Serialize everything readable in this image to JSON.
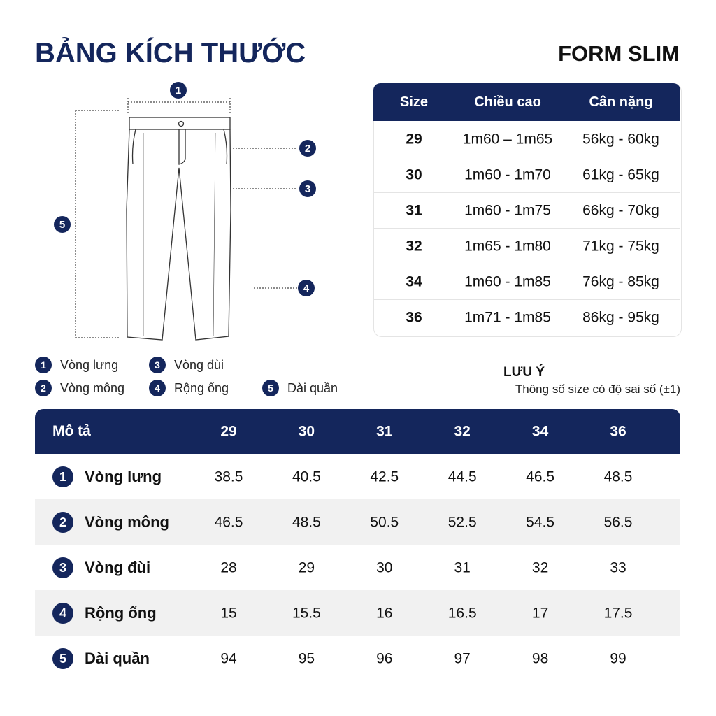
{
  "header": {
    "title": "BẢNG KÍCH THƯỚC",
    "form": "FORM SLIM"
  },
  "diagram": {
    "markers": [
      "1",
      "2",
      "3",
      "4",
      "5"
    ]
  },
  "size_table": {
    "columns": [
      "Size",
      "Chiều cao",
      "Cân nặng"
    ],
    "rows": [
      [
        "29",
        "1m60 – 1m65",
        "56kg - 60kg"
      ],
      [
        "30",
        "1m60 - 1m70",
        "61kg - 65kg"
      ],
      [
        "31",
        "1m60 - 1m75",
        "66kg - 70kg"
      ],
      [
        "32",
        "1m65 - 1m80",
        "71kg - 75kg"
      ],
      [
        "34",
        "1m60 - 1m85",
        "76kg - 85kg"
      ],
      [
        "36",
        "1m71 - 1m85",
        "86kg - 95kg"
      ]
    ]
  },
  "legend": [
    {
      "number": "1",
      "label": "Vòng lưng"
    },
    {
      "number": "3",
      "label": "Vòng đùi"
    },
    {
      "number": "2",
      "label": "Vòng mông"
    },
    {
      "number": "4",
      "label": "Rộng ống"
    },
    {
      "number": "5",
      "label": "Dài quần"
    }
  ],
  "note": {
    "title": "LƯU Ý",
    "text": "Thông số size có độ sai số (±1)"
  },
  "measure_table": {
    "columns": [
      "Mô tả",
      "29",
      "30",
      "31",
      "32",
      "34",
      "36"
    ],
    "rows": [
      {
        "number": "1",
        "label": "Vòng lưng",
        "values": [
          38.5,
          40.5,
          42.5,
          44.5,
          46.5,
          48.5
        ]
      },
      {
        "number": "2",
        "label": "Vòng mông",
        "values": [
          46.5,
          48.5,
          50.5,
          52.5,
          54.5,
          56.5
        ]
      },
      {
        "number": "3",
        "label": "Vòng đùi",
        "values": [
          28,
          29,
          30,
          31,
          32,
          33
        ]
      },
      {
        "number": "4",
        "label": "Rộng ống",
        "values": [
          15,
          15.5,
          16,
          16.5,
          17,
          17.5
        ]
      },
      {
        "number": "5",
        "label": "Dài quần",
        "values": [
          94,
          95,
          96,
          97,
          98,
          99
        ]
      }
    ]
  }
}
